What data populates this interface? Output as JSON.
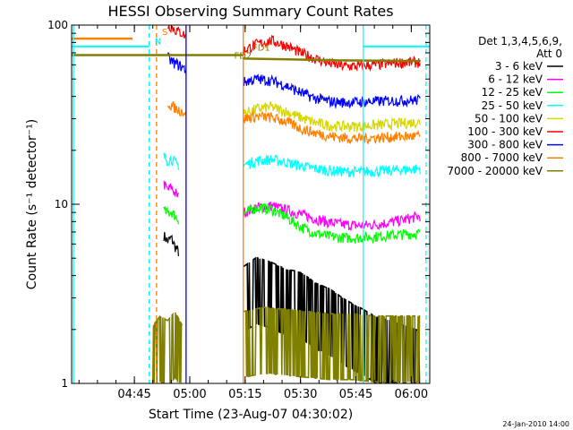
{
  "chart_data": {
    "type": "line",
    "title": "HESSI Observing Summary Count Rates",
    "xlabel": "Start Time (23-Aug-07 04:30:02)",
    "ylabel": "Count Rate (s⁻¹ detector⁻¹)",
    "x_start": "04:30",
    "x_end": "06:07",
    "xlim_minutes": [
      -2,
      95
    ],
    "ylim": [
      1,
      100
    ],
    "y_scale": "log",
    "x_ticks": [
      {
        "label": "04:45",
        "minute": 15
      },
      {
        "label": "05:00",
        "minute": 30
      },
      {
        "label": "05:15",
        "minute": 45
      },
      {
        "label": "05:30",
        "minute": 60
      },
      {
        "label": "05:45",
        "minute": 75
      },
      {
        "label": "06:00",
        "minute": 90
      }
    ],
    "y_ticks": [
      {
        "label": "1",
        "value": 1
      },
      {
        "label": "10",
        "value": 10
      },
      {
        "label": "100",
        "value": 100
      }
    ],
    "legend": {
      "header_line1": "Det 1,3,4,5,6,9,",
      "header_line2": "Att 0",
      "placement": "right"
    },
    "annotations": [
      {
        "text": "FD2",
        "minute": 42,
        "value": 65,
        "color": "#808000"
      },
      {
        "text": "FD1",
        "minute": 47,
        "value": 72,
        "color": "#808000"
      },
      {
        "text": "S",
        "minute": 22.5,
        "value": 88,
        "color": "#ff8000"
      },
      {
        "text": "N",
        "minute": 20.5,
        "value": 78,
        "color": "#00e0ff"
      }
    ],
    "series": [
      {
        "name": "3 - 6 keV",
        "color": "#000000",
        "segments": [
          {
            "x": [
              23,
              24,
              25,
              26,
              27
            ],
            "y": [
              6.7,
              6.2,
              6.5,
              5.8,
              5.4
            ]
          },
          {
            "x": [
              44.5,
              48,
              52,
              56,
              60,
              64,
              68,
              72,
              76,
              80,
              84,
              88,
              92.5
            ],
            "y": [
              3.2,
              3.6,
              3.4,
              3.1,
              3.0,
              2.6,
              2.4,
              2.1,
              1.9,
              1.7,
              1.6,
              1.5,
              1.4
            ]
          }
        ]
      },
      {
        "name": "6 - 12 keV",
        "color": "#ff00ff",
        "segments": [
          {
            "x": [
              23,
              24,
              25,
              26,
              27
            ],
            "y": [
              13,
              12,
              12.5,
              11.5,
              11
            ]
          },
          {
            "x": [
              44.5,
              48,
              52,
              56,
              60,
              64,
              68,
              72,
              76,
              80,
              84,
              88,
              92.5
            ],
            "y": [
              9.0,
              9.6,
              9.8,
              9.3,
              8.8,
              8.3,
              7.9,
              7.7,
              7.6,
              7.7,
              7.9,
              8.2,
              8.6
            ]
          }
        ]
      },
      {
        "name": "12 - 25 keV",
        "color": "#00ff00",
        "segments": [
          {
            "x": [
              23,
              24,
              25,
              26,
              27
            ],
            "y": [
              9.2,
              8.9,
              9.1,
              8.6,
              8.2
            ]
          },
          {
            "x": [
              44.5,
              48,
              52,
              56,
              60,
              64,
              68,
              72,
              76,
              80,
              84,
              88,
              92.5
            ],
            "y": [
              8.8,
              9.6,
              9.4,
              8.5,
              7.5,
              6.9,
              6.6,
              6.5,
              6.5,
              6.6,
              6.7,
              6.8,
              6.9
            ]
          }
        ]
      },
      {
        "name": "25 - 50 keV",
        "color": "#00ffff",
        "segments": [
          {
            "x": [
              23,
              24,
              25,
              26,
              27
            ],
            "y": [
              18.5,
              17.5,
              18,
              17,
              16.5
            ]
          },
          {
            "x": [
              44.5,
              48,
              52,
              56,
              60,
              64,
              68,
              72,
              76,
              80,
              84,
              88,
              92.5
            ],
            "y": [
              16.5,
              17.5,
              17.8,
              17.2,
              16.4,
              15.8,
              15.4,
              15.2,
              15.2,
              15.3,
              15.4,
              15.6,
              15.8
            ]
          }
        ]
      },
      {
        "name": "50 - 100 keV",
        "color": "#d6d600",
        "segments": [
          {
            "x": [
              44.5,
              48,
              52,
              56,
              60,
              64,
              68,
              72,
              76,
              80,
              84,
              88,
              92.5
            ],
            "y": [
              32,
              34,
              35,
              33,
              30.5,
              28.5,
              27.5,
              27.2,
              27.3,
              27.6,
              28,
              28.4,
              28.8
            ]
          }
        ]
      },
      {
        "name": "100 - 300 keV",
        "color": "#ff0000",
        "segments": [
          {
            "x": [
              24,
              25,
              26,
              27,
              28,
              29
            ],
            "y": [
              100,
              98,
              94,
              92,
              90,
              86
            ]
          },
          {
            "x": [
              44.5,
              48,
              52,
              56,
              60,
              64,
              68,
              72,
              76,
              80,
              84,
              88,
              92.5
            ],
            "y": [
              72,
              78,
              82,
              77,
              70,
              65,
              61,
              59,
              59,
              60,
              61,
              62,
              62
            ]
          }
        ]
      },
      {
        "name": "300 - 800 keV",
        "color": "#0000ff",
        "segments": [
          {
            "x": [
              24,
              25,
              26,
              27,
              28,
              29
            ],
            "y": [
              66,
              63,
              61,
              60,
              58,
              56
            ]
          },
          {
            "x": [
              44.5,
              48,
              52,
              56,
              60,
              64,
              68,
              72,
              76,
              80,
              84,
              88,
              92.5
            ],
            "y": [
              48,
              50,
              49,
              46,
              42,
              39,
              37.5,
              37,
              37.2,
              37.5,
              37.8,
              38,
              38.2
            ]
          }
        ]
      },
      {
        "name": "800 - 7000 keV",
        "color": "#ff8000",
        "segments": [
          {
            "x": [
              -2,
              14.5
            ],
            "y": [
              84,
              84
            ]
          },
          {
            "x": [
              24,
              25,
              26,
              27,
              28,
              29
            ],
            "y": [
              37,
              35.5,
              34.5,
              33.5,
              33,
              32.5
            ]
          },
          {
            "x": [
              44.5,
              48,
              52,
              56,
              60,
              64,
              68,
              72,
              76,
              80,
              84,
              88,
              92.5
            ],
            "y": [
              30,
              31,
              30.5,
              29,
              26.5,
              25,
              24,
              23.5,
              23.3,
              23.5,
              23.7,
              23.9,
              24
            ]
          }
        ]
      },
      {
        "name": "7000 - 20000 keV",
        "color": "#808000",
        "segments": [
          {
            "x": [
              -2,
              44.5
            ],
            "y": [
              68,
              68
            ]
          },
          {
            "x": [
              44.5,
              55,
              70,
              92.5
            ],
            "y": [
              65,
              64.5,
              63.5,
              63
            ]
          },
          {
            "x": [
              20,
              22,
              24,
              26,
              28
            ],
            "y": [
              1.5,
              1.7,
              1.6,
              1.8,
              1.5
            ]
          },
          {
            "x": [
              44.5,
              50,
              56,
              62,
              68,
              74,
              80,
              86,
              92.5
            ],
            "y": [
              1.8,
              1.9,
              1.85,
              1.8,
              1.75,
              1.75,
              1.7,
              1.7,
              1.7
            ]
          }
        ]
      }
    ],
    "vertical_lines": [
      {
        "minute": -1.5,
        "color": "#00ffff",
        "dashed": false
      },
      {
        "minute": 19,
        "color": "#00ffff",
        "dashed": true
      },
      {
        "minute": 21,
        "color": "#ff8000",
        "dashed": true
      },
      {
        "minute": 29,
        "color": "#0000ff",
        "dashed": false
      },
      {
        "minute": 44.5,
        "color": "#ff8000",
        "dashed": false
      },
      {
        "minute": 77,
        "color": "#00ffff",
        "dashed": false
      },
      {
        "minute": 94,
        "color": "#00ffff",
        "dashed": true
      }
    ],
    "horizontal_segments": [
      {
        "x": [
          -2,
          19
        ],
        "y": 76,
        "color": "#00ffff"
      },
      {
        "x": [
          77,
          95
        ],
        "y": 76,
        "color": "#00ffff"
      }
    ]
  },
  "footer": {
    "timestamp": "24-Jan-2010 14:00"
  }
}
